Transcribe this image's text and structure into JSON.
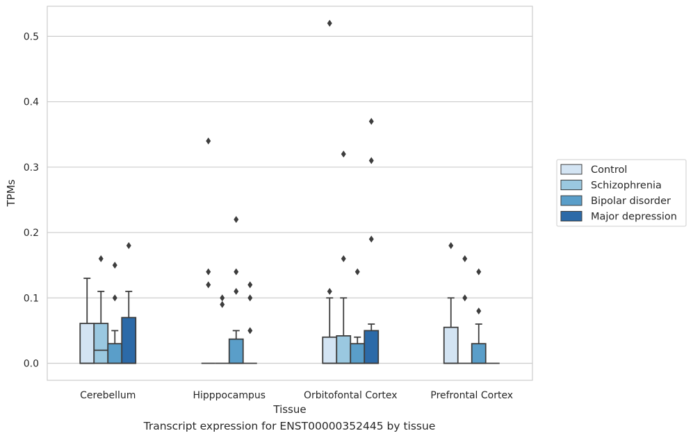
{
  "caption": "Transcript expression for ENST00000352445 by tissue",
  "chart_data": {
    "type": "box",
    "xlabel": "Tissue",
    "ylabel": "TPMs",
    "ylim": [
      -0.026,
      0.546
    ],
    "yticks": [
      "0.0",
      "0.1",
      "0.2",
      "0.3",
      "0.4",
      "0.5"
    ],
    "grid": "horizontal",
    "legend_position": "right",
    "categories": [
      "Cerebellum",
      "Hipppocampus",
      "Orbitofontal Cortex",
      "Prefrontal Cortex"
    ],
    "series": [
      {
        "name": "Control",
        "color": "#d3e4f3",
        "boxes": [
          {
            "q1": 0.0,
            "median": 0.0,
            "q3": 0.061,
            "whisker_low": 0.0,
            "whisker_high": 0.13,
            "outliers": []
          },
          {
            "q1": 0.0,
            "median": 0.0,
            "q3": 0.0,
            "whisker_low": 0.0,
            "whisker_high": 0.0,
            "outliers": [
              0.34,
              0.14,
              0.12
            ]
          },
          {
            "q1": 0.0,
            "median": 0.0,
            "q3": 0.04,
            "whisker_low": 0.0,
            "whisker_high": 0.1,
            "outliers": [
              0.52,
              0.11
            ]
          },
          {
            "q1": 0.0,
            "median": 0.0,
            "q3": 0.055,
            "whisker_low": 0.0,
            "whisker_high": 0.1,
            "outliers": [
              0.18
            ]
          }
        ]
      },
      {
        "name": "Schizophrenia",
        "color": "#9ac8e0",
        "boxes": [
          {
            "q1": 0.0,
            "median": 0.02,
            "q3": 0.061,
            "whisker_low": 0.0,
            "whisker_high": 0.11,
            "outliers": [
              0.16
            ]
          },
          {
            "q1": 0.0,
            "median": 0.0,
            "q3": 0.0,
            "whisker_low": 0.0,
            "whisker_high": 0.0,
            "outliers": [
              0.1,
              0.09
            ]
          },
          {
            "q1": 0.0,
            "median": 0.0,
            "q3": 0.042,
            "whisker_low": 0.0,
            "whisker_high": 0.1,
            "outliers": [
              0.32,
              0.16
            ]
          },
          {
            "q1": 0.0,
            "median": 0.0,
            "q3": 0.0,
            "whisker_low": 0.0,
            "whisker_high": 0.0,
            "outliers": [
              0.16,
              0.1
            ]
          }
        ]
      },
      {
        "name": "Bipolar disorder",
        "color": "#5a9ec9",
        "boxes": [
          {
            "q1": 0.0,
            "median": 0.0,
            "q3": 0.03,
            "whisker_low": 0.0,
            "whisker_high": 0.05,
            "outliers": [
              0.15,
              0.1
            ]
          },
          {
            "q1": 0.0,
            "median": 0.0,
            "q3": 0.037,
            "whisker_low": 0.0,
            "whisker_high": 0.05,
            "outliers": [
              0.22,
              0.14,
              0.11
            ]
          },
          {
            "q1": 0.0,
            "median": 0.0,
            "q3": 0.03,
            "whisker_low": 0.0,
            "whisker_high": 0.04,
            "outliers": [
              0.14
            ]
          },
          {
            "q1": 0.0,
            "median": 0.0,
            "q3": 0.03,
            "whisker_low": 0.0,
            "whisker_high": 0.06,
            "outliers": [
              0.14,
              0.08
            ]
          }
        ]
      },
      {
        "name": "Major depression",
        "color": "#2c6aa8",
        "boxes": [
          {
            "q1": 0.0,
            "median": 0.0,
            "q3": 0.07,
            "whisker_low": 0.0,
            "whisker_high": 0.11,
            "outliers": [
              0.18
            ]
          },
          {
            "q1": 0.0,
            "median": 0.0,
            "q3": 0.0,
            "whisker_low": 0.0,
            "whisker_high": 0.0,
            "outliers": [
              0.12,
              0.1,
              0.05
            ]
          },
          {
            "q1": 0.0,
            "median": 0.0,
            "q3": 0.05,
            "whisker_low": 0.0,
            "whisker_high": 0.06,
            "outliers": [
              0.37,
              0.31,
              0.19
            ]
          },
          {
            "q1": 0.0,
            "median": 0.0,
            "q3": 0.0,
            "whisker_low": 0.0,
            "whisker_high": 0.0,
            "outliers": []
          }
        ]
      }
    ]
  }
}
